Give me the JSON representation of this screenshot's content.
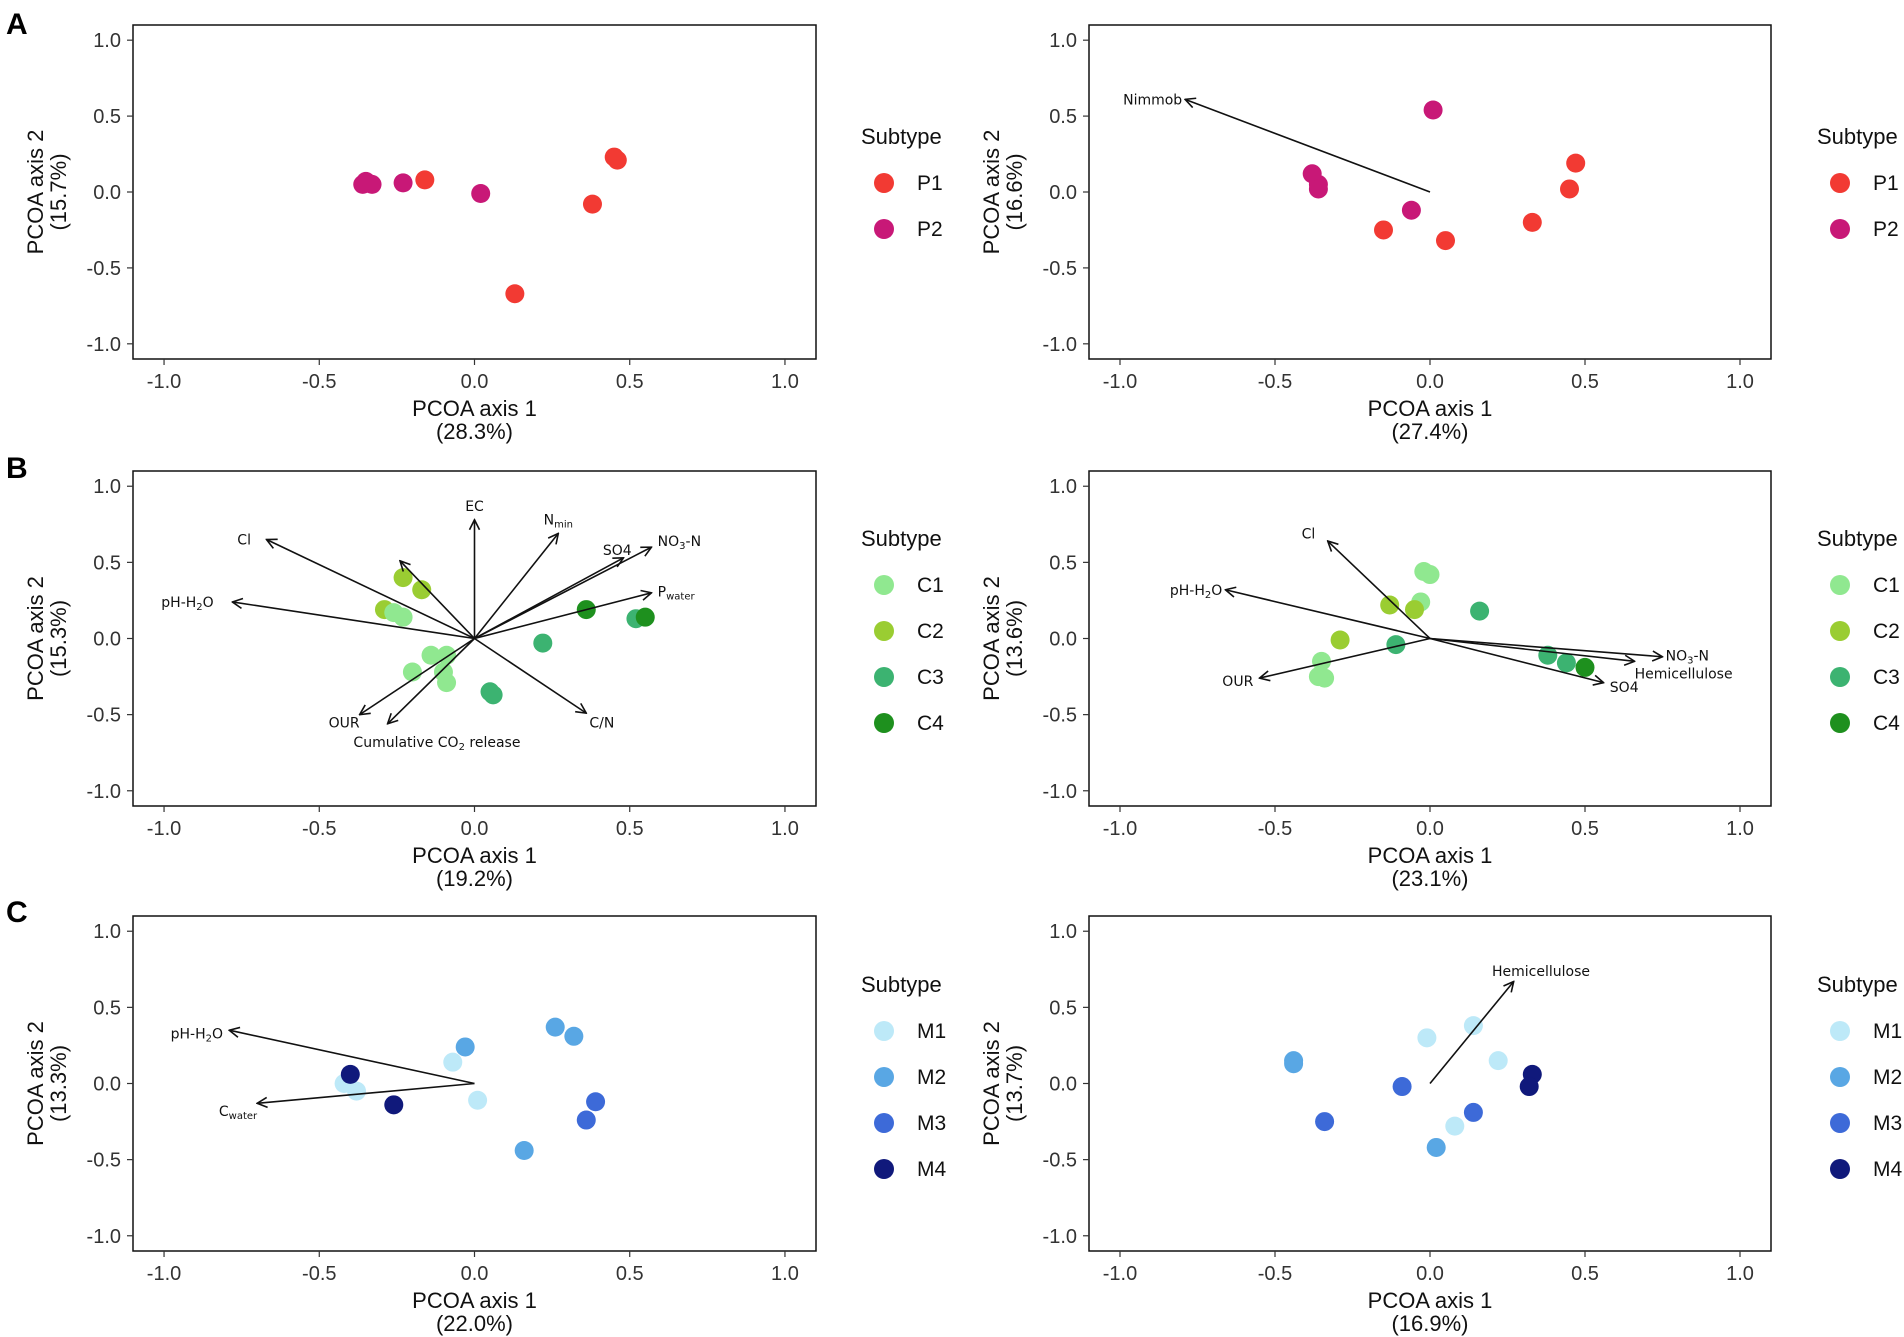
{
  "panel_letters": [
    "A",
    "B",
    "C"
  ],
  "chart_data": [
    {
      "type": "scatter",
      "panel": "A",
      "xlabel": "PCOA axis 1",
      "xlabel_pct": "(28.3%)",
      "ylabel": "PCOA axis 2",
      "ylabel_pct": "(15.7%)",
      "xlim": [
        -1.1,
        1.1
      ],
      "ylim": [
        -1.1,
        1.1
      ],
      "xticks": [
        -1.0,
        -0.5,
        0.0,
        0.5,
        1.0
      ],
      "xtick_labels": [
        "-1.0",
        "-0.5",
        "0.0",
        "0.5",
        "1.0"
      ],
      "yticks": [
        1.0,
        0.5,
        0.0,
        -0.5,
        -1.0
      ],
      "ytick_labels": [
        "1.0",
        "0.5",
        "0.0",
        "-0.5",
        "-1.0"
      ],
      "legend_title": "Subtype",
      "legend": [
        {
          "name": "P1",
          "color": "#f23a33"
        },
        {
          "name": "P2",
          "color": "#c81877"
        }
      ],
      "points": [
        {
          "x": -0.36,
          "y": 0.05,
          "group": "P2"
        },
        {
          "x": -0.35,
          "y": 0.07,
          "group": "P2"
        },
        {
          "x": -0.33,
          "y": 0.05,
          "group": "P2"
        },
        {
          "x": -0.23,
          "y": 0.06,
          "group": "P2"
        },
        {
          "x": 0.02,
          "y": -0.01,
          "group": "P2"
        },
        {
          "x": -0.16,
          "y": 0.08,
          "group": "P1"
        },
        {
          "x": 0.45,
          "y": 0.23,
          "group": "P1"
        },
        {
          "x": 0.46,
          "y": 0.21,
          "group": "P1"
        },
        {
          "x": 0.38,
          "y": -0.08,
          "group": "P1"
        },
        {
          "x": 0.13,
          "y": -0.67,
          "group": "P1"
        }
      ],
      "arrows": []
    },
    {
      "type": "scatter",
      "panel": "A2",
      "xlabel": "PCOA axis 1",
      "xlabel_pct": "(27.4%)",
      "ylabel": "PCOA axis 2",
      "ylabel_pct": "(16.6%)",
      "xlim": [
        -1.1,
        1.1
      ],
      "ylim": [
        -1.1,
        1.1
      ],
      "xticks": [
        -1.0,
        -0.5,
        0.0,
        0.5,
        1.0
      ],
      "xtick_labels": [
        "-1.0",
        "-0.5",
        "0.0",
        "0.5",
        "1.0"
      ],
      "yticks": [
        1.0,
        0.5,
        0.0,
        -0.5,
        -1.0
      ],
      "ytick_labels": [
        "1.0",
        "0.5",
        "0.0",
        "-0.5",
        "-1.0"
      ],
      "legend_title": "Subtype",
      "legend": [
        {
          "name": "P1",
          "color": "#f23a33"
        },
        {
          "name": "P2",
          "color": "#c81877"
        }
      ],
      "points": [
        {
          "x": 0.01,
          "y": 0.54,
          "group": "P2"
        },
        {
          "x": -0.38,
          "y": 0.12,
          "group": "P2"
        },
        {
          "x": -0.36,
          "y": 0.05,
          "group": "P2"
        },
        {
          "x": -0.36,
          "y": 0.02,
          "group": "P2"
        },
        {
          "x": -0.06,
          "y": -0.12,
          "group": "P2"
        },
        {
          "x": 0.47,
          "y": 0.19,
          "group": "P1"
        },
        {
          "x": 0.45,
          "y": 0.02,
          "group": "P1"
        },
        {
          "x": 0.33,
          "y": -0.2,
          "group": "P1"
        },
        {
          "x": -0.15,
          "y": -0.25,
          "group": "P1"
        },
        {
          "x": 0.05,
          "y": -0.32,
          "group": "P1"
        }
      ],
      "arrows": [
        {
          "label": "Nimmob",
          "x": -0.79,
          "y": 0.61,
          "lx": -0.99,
          "ly": 0.61,
          "anchor": "start",
          "labelParts": [
            {
              "t": "Nimmob"
            }
          ]
        }
      ]
    },
    {
      "type": "scatter",
      "panel": "B",
      "xlabel": "PCOA axis 1",
      "xlabel_pct": "(19.2%)",
      "ylabel": "PCOA axis 2",
      "ylabel_pct": "(15.3%)",
      "xlim": [
        -1.1,
        1.1
      ],
      "ylim": [
        -1.1,
        1.1
      ],
      "xticks": [
        -1.0,
        -0.5,
        0.0,
        0.5,
        1.0
      ],
      "xtick_labels": [
        "-1.0",
        "-0.5",
        "0.0",
        "0.5",
        "1.0"
      ],
      "yticks": [
        1.0,
        0.5,
        0.0,
        -0.5,
        -1.0
      ],
      "ytick_labels": [
        "1.0",
        "0.5",
        "0.0",
        "-0.5",
        "-1.0"
      ],
      "legend_title": "Subtype",
      "legend": [
        {
          "name": "C1",
          "color": "#90e890"
        },
        {
          "name": "C2",
          "color": "#9acd32"
        },
        {
          "name": "C3",
          "color": "#3cb371"
        },
        {
          "name": "C4",
          "color": "#1e901e"
        }
      ],
      "points": [
        {
          "x": -0.23,
          "y": 0.4,
          "group": "C2"
        },
        {
          "x": -0.17,
          "y": 0.32,
          "group": "C2"
        },
        {
          "x": -0.29,
          "y": 0.19,
          "group": "C2"
        },
        {
          "x": -0.26,
          "y": 0.17,
          "group": "C1"
        },
        {
          "x": -0.23,
          "y": 0.14,
          "group": "C1"
        },
        {
          "x": -0.14,
          "y": -0.11,
          "group": "C1"
        },
        {
          "x": -0.09,
          "y": -0.11,
          "group": "C1"
        },
        {
          "x": -0.2,
          "y": -0.22,
          "group": "C1"
        },
        {
          "x": -0.1,
          "y": -0.22,
          "group": "C1"
        },
        {
          "x": -0.09,
          "y": -0.29,
          "group": "C1"
        },
        {
          "x": 0.05,
          "y": -0.35,
          "group": "C3"
        },
        {
          "x": 0.06,
          "y": -0.37,
          "group": "C3"
        },
        {
          "x": 0.22,
          "y": -0.03,
          "group": "C3"
        },
        {
          "x": 0.52,
          "y": 0.13,
          "group": "C3"
        },
        {
          "x": 0.36,
          "y": 0.19,
          "group": "C4"
        },
        {
          "x": 0.55,
          "y": 0.14,
          "group": "C4"
        }
      ],
      "arrows": [
        {
          "label": "Cl",
          "x": -0.67,
          "y": 0.65,
          "lx": -0.72,
          "ly": 0.65,
          "anchor": "end",
          "labelParts": [
            {
              "t": "Cl"
            }
          ]
        },
        {
          "label": "EC",
          "x": 0.0,
          "y": 0.78,
          "lx": 0.0,
          "ly": 0.87,
          "anchor": "middle",
          "labelParts": [
            {
              "t": "EC"
            }
          ]
        },
        {
          "label": "Nmin",
          "x": 0.27,
          "y": 0.69,
          "lx": 0.27,
          "ly": 0.78,
          "anchor": "middle",
          "labelParts": [
            {
              "t": "N"
            },
            {
              "t": "min",
              "sub": true
            }
          ]
        },
        {
          "label": "SO4",
          "x": 0.48,
          "y": 0.53,
          "lx": 0.46,
          "ly": 0.58,
          "anchor": "middle",
          "labelParts": [
            {
              "t": "SO4"
            }
          ]
        },
        {
          "label": "NO3-N",
          "x": 0.57,
          "y": 0.6,
          "lx": 0.59,
          "ly": 0.64,
          "anchor": "start",
          "labelParts": [
            {
              "t": "NO"
            },
            {
              "t": "3",
              "sub": true
            },
            {
              "t": "-N"
            }
          ]
        },
        {
          "label": "Pwater",
          "x": 0.57,
          "y": 0.3,
          "lx": 0.59,
          "ly": 0.31,
          "anchor": "start",
          "labelParts": [
            {
              "t": "P"
            },
            {
              "t": "water",
              "sub": true
            }
          ]
        },
        {
          "label": "pH-H2O",
          "x": -0.78,
          "y": 0.24,
          "lx": -0.84,
          "ly": 0.24,
          "anchor": "end",
          "labelParts": [
            {
              "t": "pH-H"
            },
            {
              "t": "2",
              "sub": true
            },
            {
              "t": "O"
            }
          ]
        },
        {
          "label": "OUR",
          "x": -0.37,
          "y": -0.5,
          "lx": -0.37,
          "ly": -0.55,
          "anchor": "end",
          "labelParts": [
            {
              "t": "OUR"
            }
          ]
        },
        {
          "label": "Cumulative CO2 release",
          "x": -0.28,
          "y": -0.56,
          "lx": -0.39,
          "ly": -0.68,
          "anchor": "start",
          "labelParts": [
            {
              "t": "Cumulative CO"
            },
            {
              "t": "2",
              "sub": true
            },
            {
              "t": " release"
            }
          ]
        },
        {
          "label": "C/N",
          "x": 0.36,
          "y": -0.49,
          "lx": 0.37,
          "ly": -0.55,
          "anchor": "start",
          "labelParts": [
            {
              "t": "C/N"
            }
          ]
        },
        {
          "label": "",
          "x": -0.24,
          "y": 0.51,
          "lx": 0,
          "ly": 0,
          "anchor": "start",
          "labelParts": []
        }
      ]
    },
    {
      "type": "scatter",
      "panel": "B2",
      "xlabel": "PCOA axis 1",
      "xlabel_pct": "(23.1%)",
      "ylabel": "PCOA axis 2",
      "ylabel_pct": "(13.6%)",
      "xlim": [
        -1.1,
        1.1
      ],
      "ylim": [
        -1.1,
        1.1
      ],
      "xticks": [
        -1.0,
        -0.5,
        0.0,
        0.5,
        1.0
      ],
      "xtick_labels": [
        "-1.0",
        "-0.5",
        "0.0",
        "0.5",
        "1.0"
      ],
      "yticks": [
        1.0,
        0.5,
        0.0,
        -0.5,
        -1.0
      ],
      "ytick_labels": [
        "1.0",
        "0.5",
        "0.0",
        "-0.5",
        "-1.0"
      ],
      "legend_title": "Subtype",
      "legend": [
        {
          "name": "C1",
          "color": "#90e890"
        },
        {
          "name": "C2",
          "color": "#9acd32"
        },
        {
          "name": "C3",
          "color": "#3cb371"
        },
        {
          "name": "C4",
          "color": "#1e901e"
        }
      ],
      "points": [
        {
          "x": -0.02,
          "y": 0.44,
          "group": "C1"
        },
        {
          "x": 0.0,
          "y": 0.42,
          "group": "C1"
        },
        {
          "x": -0.03,
          "y": 0.24,
          "group": "C1"
        },
        {
          "x": -0.35,
          "y": -0.15,
          "group": "C1"
        },
        {
          "x": -0.36,
          "y": -0.25,
          "group": "C1"
        },
        {
          "x": -0.34,
          "y": -0.26,
          "group": "C1"
        },
        {
          "x": -0.13,
          "y": 0.22,
          "group": "C2"
        },
        {
          "x": -0.05,
          "y": 0.19,
          "group": "C2"
        },
        {
          "x": -0.29,
          "y": -0.01,
          "group": "C2"
        },
        {
          "x": 0.16,
          "y": 0.18,
          "group": "C3"
        },
        {
          "x": -0.11,
          "y": -0.04,
          "group": "C3"
        },
        {
          "x": 0.38,
          "y": -0.11,
          "group": "C3"
        },
        {
          "x": 0.44,
          "y": -0.16,
          "group": "C3"
        },
        {
          "x": 0.5,
          "y": -0.19,
          "group": "C4"
        }
      ],
      "arrows": [
        {
          "label": "Cl",
          "x": -0.33,
          "y": 0.64,
          "lx": -0.37,
          "ly": 0.69,
          "anchor": "end",
          "labelParts": [
            {
              "t": "Cl"
            }
          ]
        },
        {
          "label": "pH-H2O",
          "x": -0.66,
          "y": 0.32,
          "lx": -0.67,
          "ly": 0.32,
          "anchor": "end",
          "labelParts": [
            {
              "t": "pH-H"
            },
            {
              "t": "2",
              "sub": true
            },
            {
              "t": "O"
            }
          ]
        },
        {
          "label": "OUR",
          "x": -0.55,
          "y": -0.26,
          "lx": -0.57,
          "ly": -0.28,
          "anchor": "end",
          "labelParts": [
            {
              "t": "OUR"
            }
          ]
        },
        {
          "label": "NO3-N",
          "x": 0.75,
          "y": -0.12,
          "lx": 0.76,
          "ly": -0.11,
          "anchor": "start",
          "labelParts": [
            {
              "t": "NO"
            },
            {
              "t": "3",
              "sub": true
            },
            {
              "t": "-N"
            }
          ]
        },
        {
          "label": "Hemicellulose",
          "x": 0.66,
          "y": -0.15,
          "lx": 0.66,
          "ly": -0.23,
          "anchor": "start",
          "labelParts": [
            {
              "t": "Hemicellulose"
            }
          ]
        },
        {
          "label": "SO4",
          "x": 0.56,
          "y": -0.29,
          "lx": 0.58,
          "ly": -0.32,
          "anchor": "start",
          "labelParts": [
            {
              "t": "SO4"
            }
          ]
        }
      ]
    },
    {
      "type": "scatter",
      "panel": "C",
      "xlabel": "PCOA axis 1",
      "xlabel_pct": "(22.0%)",
      "ylabel": "PCOA axis 2",
      "ylabel_pct": "(13.3%)",
      "xlim": [
        -1.1,
        1.1
      ],
      "ylim": [
        -1.1,
        1.1
      ],
      "xticks": [
        -1.0,
        -0.5,
        0.0,
        0.5,
        1.0
      ],
      "xtick_labels": [
        "-1.0",
        "-0.5",
        "0.0",
        "0.5",
        "1.0"
      ],
      "yticks": [
        1.0,
        0.5,
        0.0,
        -0.5,
        -1.0
      ],
      "ytick_labels": [
        "1.0",
        "0.5",
        "0.0",
        "-0.5",
        "-1.0"
      ],
      "legend_title": "Subtype",
      "legend": [
        {
          "name": "M1",
          "color": "#bde9f8"
        },
        {
          "name": "M2",
          "color": "#59a7e4"
        },
        {
          "name": "M3",
          "color": "#3d6ad8"
        },
        {
          "name": "M4",
          "color": "#10197b"
        }
      ],
      "points": [
        {
          "x": -0.42,
          "y": 0.0,
          "group": "M1"
        },
        {
          "x": -0.38,
          "y": -0.05,
          "group": "M1"
        },
        {
          "x": -0.07,
          "y": 0.14,
          "group": "M1"
        },
        {
          "x": 0.01,
          "y": -0.11,
          "group": "M1"
        },
        {
          "x": -0.03,
          "y": 0.24,
          "group": "M2"
        },
        {
          "x": 0.26,
          "y": 0.37,
          "group": "M2"
        },
        {
          "x": 0.32,
          "y": 0.31,
          "group": "M2"
        },
        {
          "x": 0.16,
          "y": -0.44,
          "group": "M2"
        },
        {
          "x": 0.39,
          "y": -0.12,
          "group": "M3"
        },
        {
          "x": 0.36,
          "y": -0.24,
          "group": "M3"
        },
        {
          "x": -0.4,
          "y": 0.06,
          "group": "M4"
        },
        {
          "x": -0.26,
          "y": -0.14,
          "group": "M4"
        }
      ],
      "arrows": [
        {
          "label": "pH-H2O",
          "x": -0.79,
          "y": 0.35,
          "lx": -0.81,
          "ly": 0.33,
          "anchor": "end",
          "labelParts": [
            {
              "t": "pH-H"
            },
            {
              "t": "2",
              "sub": true
            },
            {
              "t": "O"
            }
          ]
        },
        {
          "label": "Cwater",
          "x": -0.7,
          "y": -0.13,
          "lx": -0.7,
          "ly": -0.18,
          "anchor": "end",
          "labelParts": [
            {
              "t": "C"
            },
            {
              "t": "water",
              "sub": true
            }
          ]
        }
      ]
    },
    {
      "type": "scatter",
      "panel": "C2",
      "xlabel": "PCOA axis 1",
      "xlabel_pct": "(16.9%)",
      "ylabel": "PCOA axis 2",
      "ylabel_pct": "(13.7%)",
      "xlim": [
        -1.1,
        1.1
      ],
      "ylim": [
        -1.1,
        1.1
      ],
      "xticks": [
        -1.0,
        -0.5,
        0.0,
        0.5,
        1.0
      ],
      "xtick_labels": [
        "-1.0",
        "-0.5",
        "0.0",
        "0.5",
        "1.0"
      ],
      "yticks": [
        1.0,
        0.5,
        0.0,
        -0.5,
        -1.0
      ],
      "ytick_labels": [
        "1.0",
        "0.5",
        "0.0",
        "-0.5",
        "-1.0"
      ],
      "legend_title": "Subtype",
      "legend": [
        {
          "name": "M1",
          "color": "#bde9f8"
        },
        {
          "name": "M2",
          "color": "#59a7e4"
        },
        {
          "name": "M3",
          "color": "#3d6ad8"
        },
        {
          "name": "M4",
          "color": "#10197b"
        }
      ],
      "points": [
        {
          "x": -0.01,
          "y": 0.3,
          "group": "M1"
        },
        {
          "x": 0.14,
          "y": 0.38,
          "group": "M1"
        },
        {
          "x": 0.22,
          "y": 0.15,
          "group": "M1"
        },
        {
          "x": 0.08,
          "y": -0.28,
          "group": "M1"
        },
        {
          "x": -0.44,
          "y": 0.15,
          "group": "M2"
        },
        {
          "x": -0.44,
          "y": 0.13,
          "group": "M2"
        },
        {
          "x": 0.02,
          "y": -0.42,
          "group": "M2"
        },
        {
          "x": -0.34,
          "y": -0.25,
          "group": "M3"
        },
        {
          "x": -0.09,
          "y": -0.02,
          "group": "M3"
        },
        {
          "x": 0.14,
          "y": -0.19,
          "group": "M3"
        },
        {
          "x": 0.33,
          "y": 0.06,
          "group": "M4"
        },
        {
          "x": 0.32,
          "y": -0.02,
          "group": "M4"
        }
      ],
      "arrows": [
        {
          "label": "Hemicellulose",
          "x": 0.27,
          "y": 0.67,
          "lx": 0.2,
          "ly": 0.74,
          "anchor": "start",
          "labelParts": [
            {
              "t": "Hemicellulose"
            }
          ]
        }
      ]
    }
  ]
}
